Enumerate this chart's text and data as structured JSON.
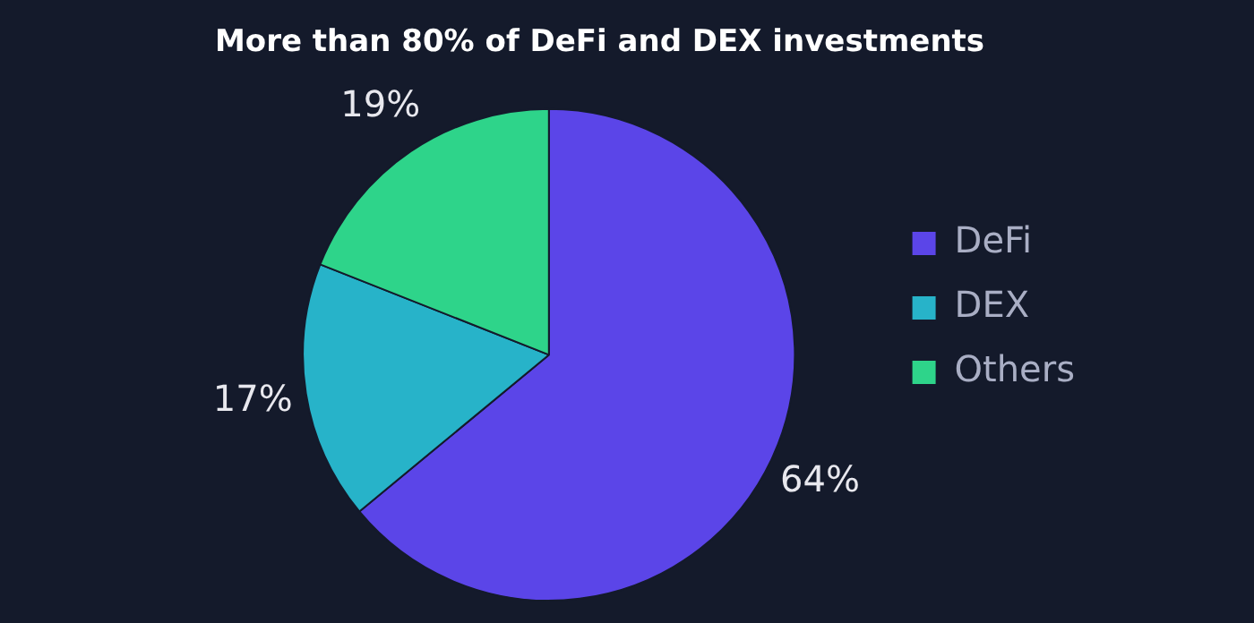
{
  "chart_data": {
    "type": "pie",
    "title": "More than 80% of DeFi and DEX investments",
    "categories": [
      "DeFi",
      "DEX",
      "Others"
    ],
    "values": [
      64,
      17,
      19
    ],
    "colors": [
      "#5b45e8",
      "#27b3c9",
      "#2ed48a"
    ],
    "value_labels": [
      "64%",
      "17%",
      "19%"
    ],
    "legend": "right"
  }
}
